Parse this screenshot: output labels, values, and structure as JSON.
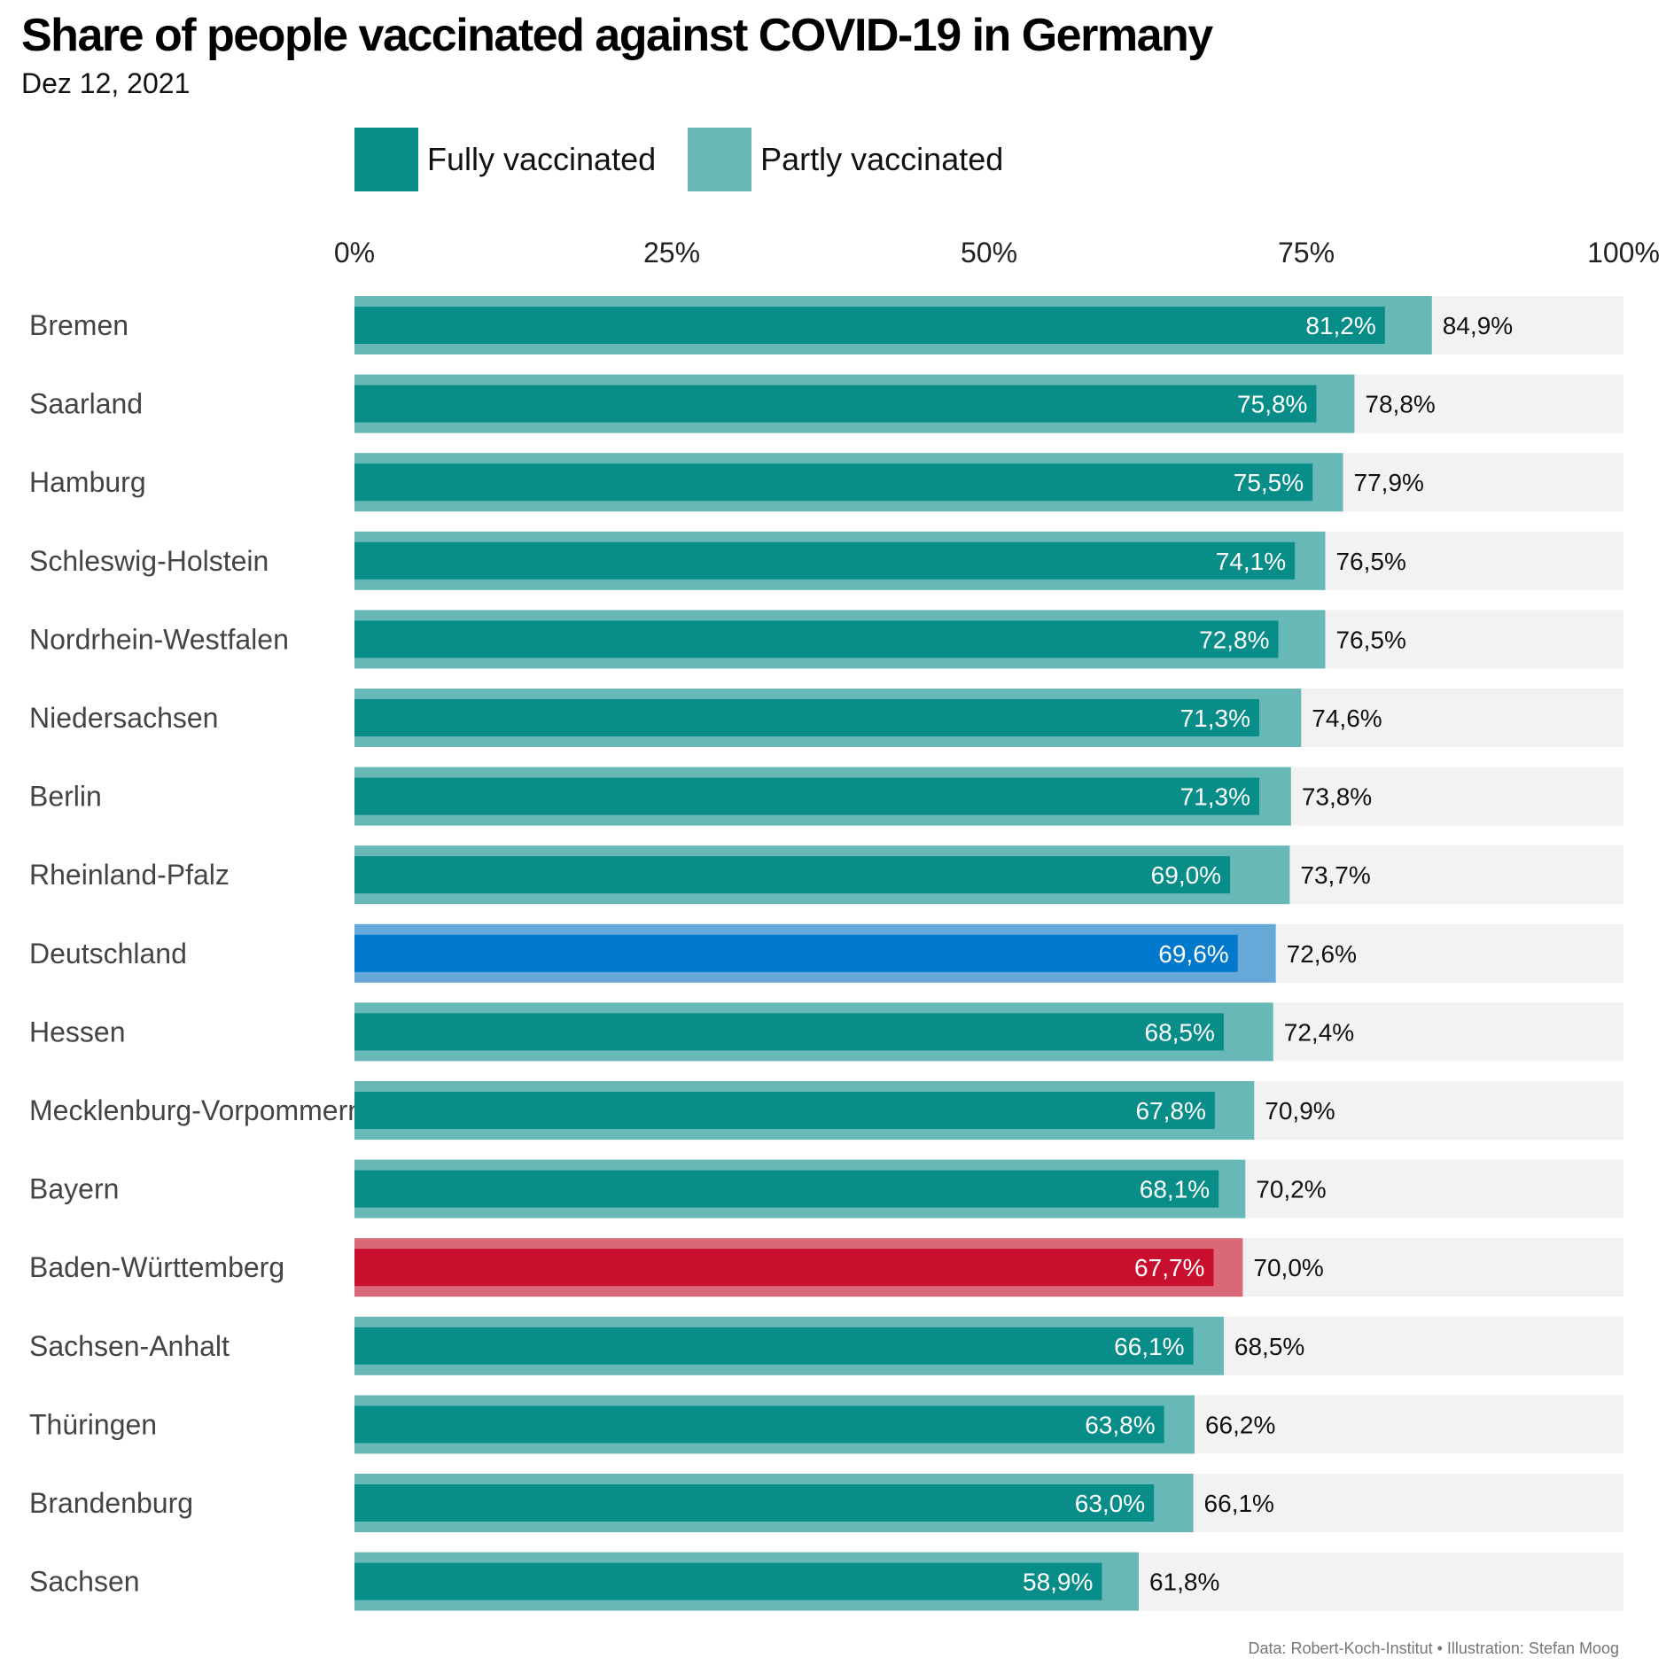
{
  "title": "Share of people vaccinated against COVID-19 in Germany",
  "subtitle": "Dez 12, 2021",
  "legend": [
    {
      "label": "Fully vaccinated",
      "color": "#088d89"
    },
    {
      "label": "Partly vaccinated",
      "color": "#67b8b6"
    }
  ],
  "footer": "Data: Robert-Koch-Institut • Illustration: Stefan Moog",
  "chart_data": {
    "type": "bar",
    "orientation": "horizontal",
    "xlim": [
      0,
      100
    ],
    "xticks": [
      "0%",
      "25%",
      "50%",
      "75%",
      "100%"
    ],
    "categories": [
      "Bremen",
      "Saarland",
      "Hamburg",
      "Schleswig-Holstein",
      "Nordrhein-Westfalen",
      "Niedersachsen",
      "Berlin",
      "Rheinland-Pfalz",
      "Deutschland",
      "Hessen",
      "Mecklenburg-Vorpommern",
      "Bayern",
      "Baden-Württemberg",
      "Sachsen-Anhalt",
      "Thüringen",
      "Brandenburg",
      "Sachsen"
    ],
    "series": [
      {
        "name": "Fully vaccinated",
        "values": [
          81.2,
          75.8,
          75.5,
          74.1,
          72.8,
          71.3,
          71.3,
          69.0,
          69.6,
          68.5,
          67.8,
          68.1,
          67.7,
          66.1,
          63.8,
          63.0,
          58.9
        ],
        "labels": [
          "81,2%",
          "75,8%",
          "75,5%",
          "74,1%",
          "72,8%",
          "71,3%",
          "71,3%",
          "69,0%",
          "69,6%",
          "68,5%",
          "67,8%",
          "68,1%",
          "67,7%",
          "66,1%",
          "63,8%",
          "63,0%",
          "58,9%"
        ]
      },
      {
        "name": "Partly vaccinated",
        "values": [
          84.9,
          78.8,
          77.9,
          76.5,
          76.5,
          74.6,
          73.8,
          73.7,
          72.6,
          72.4,
          70.9,
          70.2,
          70.0,
          68.5,
          66.2,
          66.1,
          61.8
        ],
        "labels": [
          "84,9%",
          "78,8%",
          "77,9%",
          "76,5%",
          "76,5%",
          "74,6%",
          "73,8%",
          "73,7%",
          "72,6%",
          "72,4%",
          "70,9%",
          "70,2%",
          "70,0%",
          "68,5%",
          "66,2%",
          "66,1%",
          "61,8%"
        ]
      }
    ],
    "highlight": {
      "Deutschland": {
        "full": "#0079cc",
        "partly": "#66a8d8"
      },
      "Baden-Württemberg": {
        "full": "#c8102e",
        "partly": "#d96878"
      }
    },
    "track_color": "#f2f2f2"
  }
}
